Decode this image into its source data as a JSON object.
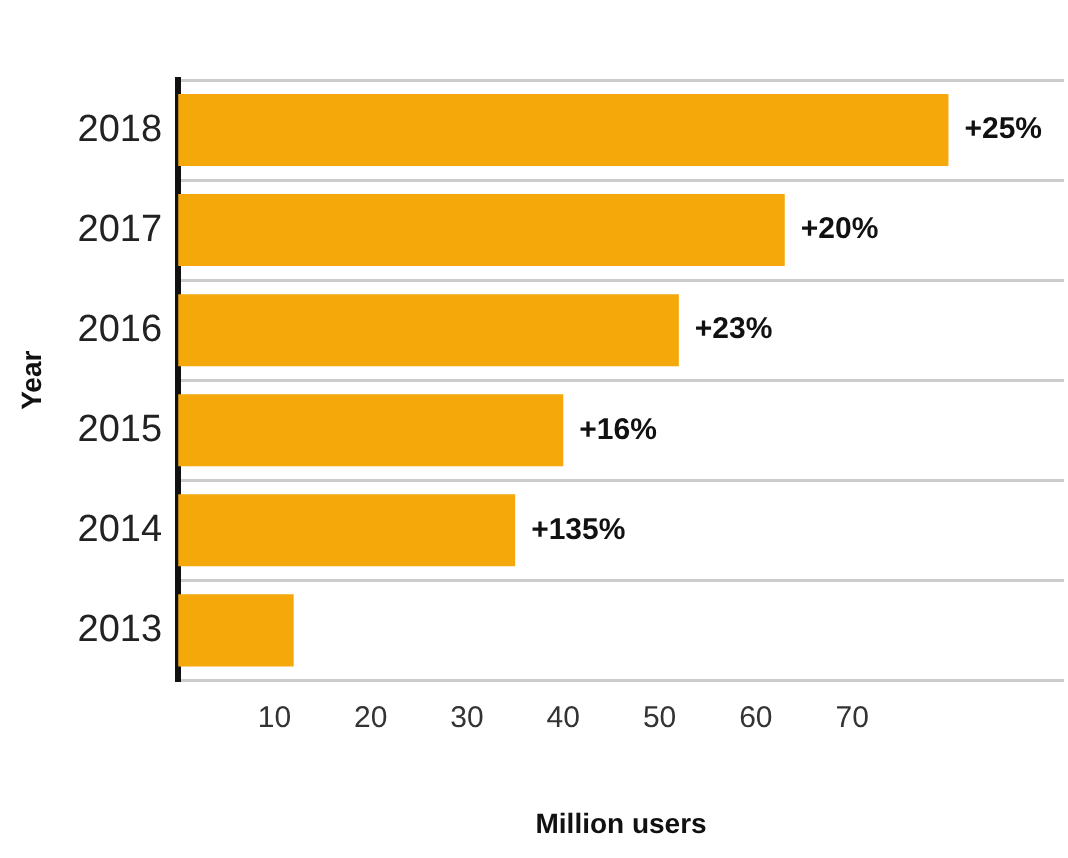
{
  "chart_data": {
    "type": "bar",
    "orientation": "horizontal",
    "categories": [
      "2018",
      "2017",
      "2016",
      "2015",
      "2014",
      "2013"
    ],
    "values": [
      80,
      63,
      52,
      40,
      35,
      12
    ],
    "annotations": [
      {
        "text": "+25%",
        "x": 80,
        "y": "2018"
      },
      {
        "text": "+20%",
        "x": 63,
        "y": "2017"
      },
      {
        "text": "+23%",
        "x": 52,
        "y": "2016"
      },
      {
        "text": "+16%",
        "x": 40,
        "y": "2015"
      },
      {
        "text": "+135%",
        "x": 35,
        "y": "2014"
      }
    ],
    "color": "#f5a80a",
    "xlim": [
      0,
      92
    ],
    "xticks": [
      10,
      20,
      30,
      40,
      50,
      60,
      70
    ],
    "xlabel": "Million users",
    "ylabel": "Year",
    "grid": "y",
    "legend": false
  }
}
